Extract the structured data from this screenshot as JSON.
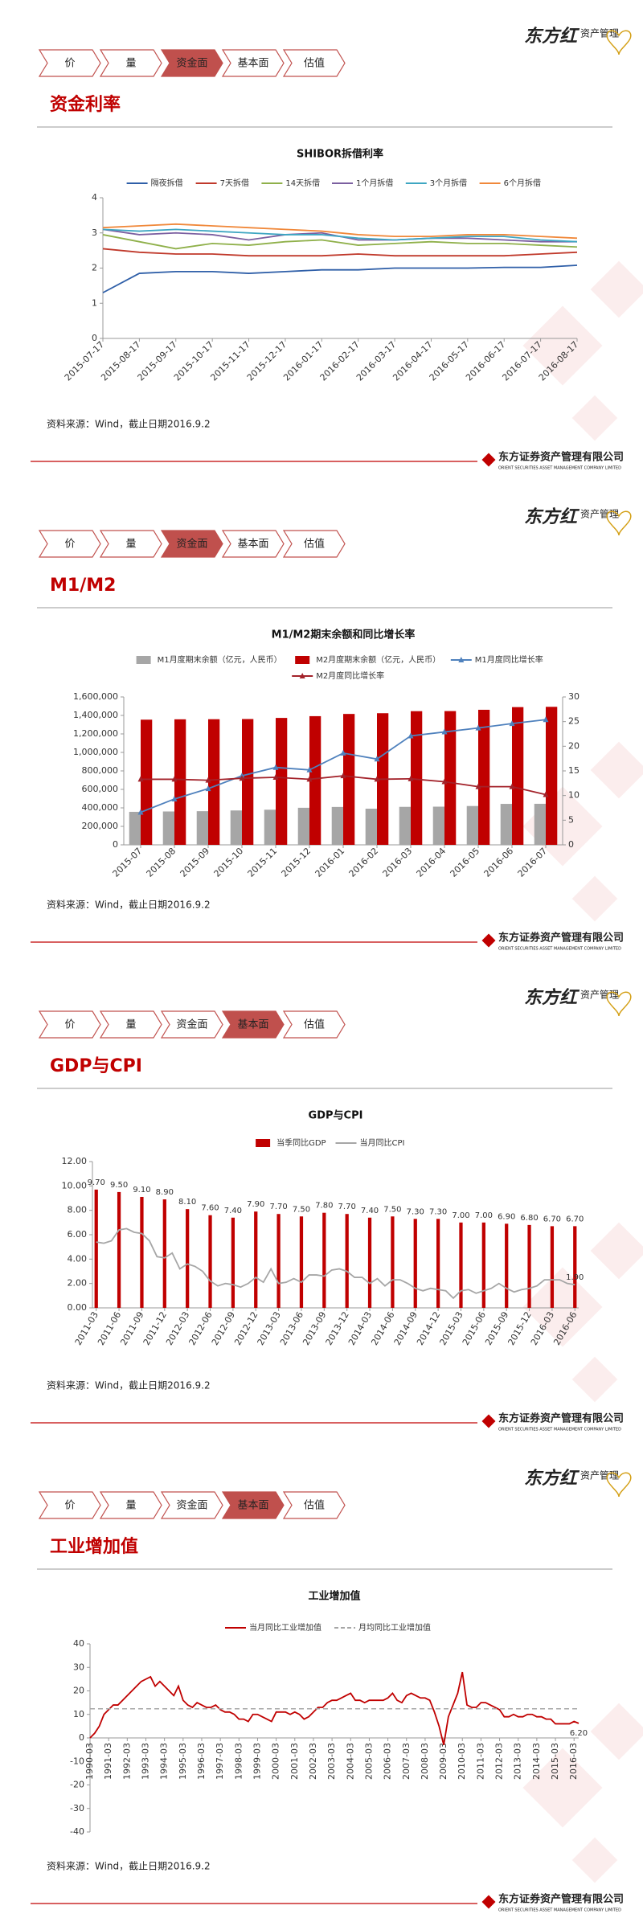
{
  "brand": {
    "logo": "东方红",
    "logo_sub": "资产管理",
    "company": "东方证券资产管理有限公司",
    "company_en": "ORIENT SECURITIES ASSET MANAGEMENT COMPANY LIMITED"
  },
  "nav": [
    "价",
    "量",
    "资金面",
    "基本面",
    "估值"
  ],
  "sections": [
    {
      "title": "资金利率",
      "active": 2,
      "source": "资料来源：Wind，截止日期2016.9.2"
    },
    {
      "title": "M1/M2",
      "active": 2,
      "source": "资料来源：Wind，截止日期2016.9.2"
    },
    {
      "title": "GDP与CPI",
      "active": 3,
      "source": "资料来源：Wind，截止日期2016.9.2"
    },
    {
      "title": "工业增加值",
      "active": 3,
      "source": "资料来源：Wind，截止日期2016.9.2"
    }
  ],
  "chart_data": [
    {
      "type": "line",
      "title": "SHIBOR拆借利率",
      "categories": [
        "2015-07-17",
        "2015-08-17",
        "2015-09-17",
        "2015-10-17",
        "2015-11-17",
        "2015-12-17",
        "2016-01-17",
        "2016-02-17",
        "2016-03-17",
        "2016-04-17",
        "2016-05-17",
        "2016-06-17",
        "2016-07-17",
        "2016-08-17"
      ],
      "ylim": [
        0,
        4
      ],
      "yticks": [
        0,
        1,
        2,
        3,
        4
      ],
      "grid": false,
      "series": [
        {
          "name": "隔夜拆借",
          "type": "line",
          "color": "#2f5fa8",
          "values": [
            1.3,
            1.85,
            1.9,
            1.9,
            1.85,
            1.9,
            1.95,
            1.95,
            2.0,
            2.0,
            2.0,
            2.02,
            2.02,
            2.08
          ]
        },
        {
          "name": "7天拆借",
          "type": "line",
          "color": "#c0392b",
          "values": [
            2.55,
            2.45,
            2.4,
            2.4,
            2.35,
            2.35,
            2.35,
            2.4,
            2.35,
            2.35,
            2.35,
            2.35,
            2.4,
            2.45
          ]
        },
        {
          "name": "14天拆借",
          "type": "line",
          "color": "#8fb04a",
          "values": [
            2.95,
            2.75,
            2.55,
            2.7,
            2.65,
            2.75,
            2.8,
            2.65,
            2.7,
            2.75,
            2.7,
            2.7,
            2.65,
            2.6
          ]
        },
        {
          "name": "1个月拆借",
          "type": "line",
          "color": "#7b5fa0",
          "values": [
            3.1,
            2.95,
            3.0,
            2.95,
            2.8,
            2.95,
            3.0,
            2.8,
            2.8,
            2.85,
            2.85,
            2.8,
            2.75,
            2.75
          ]
        },
        {
          "name": "3个月拆借",
          "type": "line",
          "color": "#3ea6c2",
          "values": [
            3.1,
            3.05,
            3.1,
            3.05,
            3.0,
            2.95,
            2.95,
            2.85,
            2.8,
            2.85,
            2.9,
            2.9,
            2.8,
            2.75
          ]
        },
        {
          "name": "6个月拆借",
          "type": "line",
          "color": "#f0883a",
          "values": [
            3.15,
            3.2,
            3.25,
            3.2,
            3.15,
            3.1,
            3.05,
            2.95,
            2.9,
            2.9,
            2.95,
            2.95,
            2.9,
            2.85
          ]
        }
      ]
    },
    {
      "type": "bar",
      "title": "M1/M2期末余额和同比增长率",
      "categories": [
        "2015-07",
        "2015-08",
        "2015-09",
        "2015-10",
        "2015-11",
        "2015-12",
        "2016-01",
        "2016-02",
        "2016-03",
        "2016-04",
        "2016-05",
        "2016-06",
        "2016-07"
      ],
      "ylim": [
        0,
        1600000
      ],
      "yticks": [
        0,
        {
          "value": 200000,
          "label": "200,000"
        },
        {
          "value": 400000,
          "label": "400,000"
        },
        {
          "value": 600000,
          "label": "600,000"
        },
        {
          "value": 800000,
          "label": "800,000"
        },
        {
          "value": 1000000,
          "label": "1,000,000"
        },
        {
          "value": 1200000,
          "label": "1,200,000"
        },
        {
          "value": 1400000,
          "label": "1,400,000"
        },
        {
          "value": 1600000,
          "label": "1,600,000"
        }
      ],
      "y2lim": [
        0,
        30
      ],
      "y2ticks": [
        0,
        5,
        10,
        15,
        20,
        25,
        30
      ],
      "grid": false,
      "series": [
        {
          "name": "M1月度期末余额（亿元，人民币）",
          "type": "bar",
          "color": "#a6a6a6",
          "values": [
            357000,
            361000,
            364000,
            372000,
            380000,
            401000,
            410000,
            391000,
            411000,
            413000,
            420000,
            443000,
            444000
          ]
        },
        {
          "name": "M2月度期末余额（亿元，人民币）",
          "type": "bar",
          "color": "#c00000",
          "values": [
            1354000,
            1358000,
            1359000,
            1361000,
            1373000,
            1392000,
            1416000,
            1424000,
            1446000,
            1447000,
            1461000,
            1490000,
            1493000
          ]
        },
        {
          "name": "M1月度同比增长率",
          "type": "line",
          "axis": "y2",
          "marker": "triangle",
          "color": "#4f81bd",
          "values": [
            6.6,
            9.3,
            11.4,
            14.0,
            15.7,
            15.2,
            18.6,
            17.4,
            22.1,
            22.9,
            23.7,
            24.6,
            25.4
          ]
        },
        {
          "name": "M2月度同比增长率",
          "type": "line",
          "axis": "y2",
          "marker": "triangle",
          "color": "#a3222a",
          "values": [
            13.3,
            13.3,
            13.1,
            13.5,
            13.7,
            13.3,
            14.0,
            13.3,
            13.4,
            12.8,
            11.8,
            11.8,
            10.2
          ]
        }
      ]
    },
    {
      "type": "bar",
      "title": "GDP与CPI",
      "categories": [
        "2011-03",
        null,
        null,
        "2011-06",
        null,
        null,
        "2011-09",
        null,
        null,
        "2011-12",
        null,
        null,
        "2012-03",
        null,
        null,
        "2012-06",
        null,
        null,
        "2012-09",
        null,
        null,
        "2012-12",
        null,
        null,
        "2013-03",
        null,
        null,
        "2013-06",
        null,
        null,
        "2013-09",
        null,
        null,
        "2013-12",
        null,
        null,
        "2014-03",
        null,
        null,
        "2014-06",
        null,
        null,
        "2014-09",
        null,
        null,
        "2014-12",
        null,
        null,
        "2015-03",
        null,
        null,
        "2015-06",
        null,
        null,
        "2015-09",
        null,
        null,
        "2015-12",
        null,
        null,
        "2016-03",
        null,
        null,
        "2016-06"
      ],
      "ylim": [
        0,
        12
      ],
      "yticks": [
        {
          "value": 0,
          "label": "0.00"
        },
        {
          "value": 2,
          "label": "2.00"
        },
        {
          "value": 4,
          "label": "4.00"
        },
        {
          "value": 6,
          "label": "6.00"
        },
        {
          "value": 8,
          "label": "8.00"
        },
        {
          "value": 10,
          "label": "10.00"
        },
        {
          "value": 12,
          "label": "12.00"
        }
      ],
      "grid": false,
      "series": [
        {
          "name": "当季同比GDP",
          "type": "bar",
          "color": "#c00000",
          "values": [
            9.7,
            null,
            null,
            9.5,
            null,
            null,
            9.1,
            null,
            null,
            8.9,
            null,
            null,
            8.1,
            null,
            null,
            7.6,
            null,
            null,
            7.4,
            null,
            null,
            7.9,
            null,
            null,
            7.7,
            null,
            null,
            7.5,
            null,
            null,
            7.8,
            null,
            null,
            7.7,
            null,
            null,
            7.4,
            null,
            null,
            7.5,
            null,
            null,
            7.3,
            null,
            null,
            7.3,
            null,
            null,
            7.0,
            null,
            null,
            7.0,
            null,
            null,
            6.9,
            null,
            null,
            6.8,
            null,
            null,
            6.7,
            null,
            null,
            6.7
          ],
          "value_labels": [
            "9.70",
            null,
            null,
            "9.50",
            null,
            null,
            "9.10",
            null,
            null,
            "8.90",
            null,
            null,
            "8.10",
            null,
            null,
            "7.60",
            null,
            null,
            "7.40",
            null,
            null,
            "7.90",
            null,
            null,
            "7.70",
            null,
            null,
            "7.50",
            null,
            null,
            "7.80",
            null,
            null,
            "7.70",
            null,
            null,
            "7.40",
            null,
            null,
            "7.50",
            null,
            null,
            "7.30",
            null,
            null,
            "7.30",
            null,
            null,
            "7.00",
            null,
            null,
            "7.00",
            null,
            null,
            "6.90",
            null,
            null,
            "6.80",
            null,
            null,
            "6.70",
            null,
            null,
            "6.70"
          ]
        },
        {
          "name": "当月同比CPI",
          "type": "line",
          "color": "#a6a6a6",
          "values": [
            5.4,
            5.3,
            5.5,
            6.4,
            6.5,
            6.2,
            6.1,
            5.5,
            4.2,
            4.1,
            4.5,
            3.2,
            3.6,
            3.4,
            3.0,
            2.2,
            1.8,
            2.0,
            1.9,
            1.7,
            2.0,
            2.5,
            2.1,
            3.2,
            2.0,
            2.1,
            2.4,
            2.1,
            2.7,
            2.7,
            2.6,
            3.1,
            3.2,
            3.0,
            2.5,
            2.5,
            2.0,
            2.4,
            1.8,
            2.3,
            2.3,
            2.0,
            1.6,
            1.4,
            1.6,
            1.5,
            1.4,
            0.8,
            1.4,
            1.5,
            1.2,
            1.4,
            1.6,
            2.0,
            1.6,
            1.3,
            1.5,
            1.6,
            1.8,
            2.3,
            2.3,
            2.3,
            2.0,
            1.9
          ],
          "value_labels": [
            null,
            null,
            null,
            null,
            null,
            null,
            null,
            null,
            null,
            null,
            null,
            null,
            null,
            null,
            null,
            null,
            null,
            null,
            null,
            null,
            null,
            null,
            null,
            null,
            null,
            null,
            null,
            null,
            null,
            null,
            null,
            null,
            null,
            null,
            null,
            null,
            null,
            null,
            null,
            null,
            null,
            null,
            null,
            null,
            null,
            null,
            null,
            null,
            null,
            null,
            null,
            null,
            null,
            null,
            null,
            null,
            null,
            null,
            null,
            null,
            null,
            null,
            null,
            "1.90"
          ]
        }
      ]
    },
    {
      "type": "line",
      "title": "工业增加值",
      "categories": [
        "1990-03",
        null,
        null,
        null,
        "1991-03",
        null,
        null,
        null,
        "1992-03",
        null,
        null,
        null,
        "1993-03",
        null,
        null,
        null,
        "1994-03",
        null,
        null,
        null,
        "1995-03",
        null,
        null,
        null,
        "1996-03",
        null,
        null,
        null,
        "1997-03",
        null,
        null,
        null,
        "1998-03",
        null,
        null,
        null,
        "1999-03",
        null,
        null,
        null,
        "2000-03",
        null,
        null,
        null,
        "2001-03",
        null,
        null,
        null,
        "2002-03",
        null,
        null,
        null,
        "2003-03",
        null,
        null,
        null,
        "2004-03",
        null,
        null,
        null,
        "2005-03",
        null,
        null,
        null,
        "2006-03",
        null,
        null,
        null,
        "2007-03",
        null,
        null,
        null,
        "2008-03",
        null,
        null,
        null,
        "2009-03",
        null,
        null,
        null,
        "2010-03",
        null,
        null,
        null,
        "2011-03",
        null,
        null,
        null,
        "2012-03",
        null,
        null,
        null,
        "2013-03",
        null,
        null,
        null,
        "2014-03",
        null,
        null,
        null,
        "2015-03",
        null,
        null,
        null,
        "2016-03",
        null
      ],
      "ylim": [
        -40,
        40
      ],
      "yticks": [
        -40,
        -30,
        -20,
        -10,
        0,
        10,
        20,
        30,
        40
      ],
      "grid": false,
      "series": [
        {
          "name": "当月同比工业增加值",
          "type": "line",
          "color": "#c00000",
          "values": [
            0,
            2,
            5,
            10,
            12,
            14,
            14,
            16,
            18,
            20,
            22,
            24,
            25,
            26,
            22,
            24,
            22,
            20,
            18,
            22,
            16,
            14,
            13,
            15,
            14,
            13,
            13,
            14,
            12,
            11,
            11,
            10,
            8,
            8,
            7,
            10,
            10,
            9,
            8,
            7,
            11,
            11,
            11,
            10,
            11,
            10,
            8,
            9,
            11,
            13,
            13,
            15,
            16,
            16,
            17,
            18,
            19,
            16,
            16,
            15,
            16,
            16,
            16,
            16,
            17,
            19,
            16,
            15,
            18,
            19,
            18,
            17,
            17,
            16,
            11,
            5,
            -3,
            9,
            14,
            19,
            28,
            14,
            13,
            13,
            15,
            15,
            14,
            13,
            12,
            9,
            9,
            10,
            9,
            9,
            10,
            10,
            9,
            9,
            8,
            8,
            6,
            6,
            6,
            6,
            7,
            6.2
          ],
          "value_labels": [
            null,
            null,
            null,
            null,
            null,
            null,
            null,
            null,
            null,
            null,
            null,
            null,
            null,
            null,
            null,
            null,
            null,
            null,
            null,
            null,
            null,
            null,
            null,
            null,
            null,
            null,
            null,
            null,
            null,
            null,
            null,
            null,
            null,
            null,
            null,
            null,
            null,
            null,
            null,
            null,
            null,
            null,
            null,
            null,
            null,
            null,
            null,
            null,
            null,
            null,
            null,
            null,
            null,
            null,
            null,
            null,
            null,
            null,
            null,
            null,
            null,
            null,
            null,
            null,
            null,
            null,
            null,
            null,
            null,
            null,
            null,
            null,
            null,
            null,
            null,
            null,
            null,
            null,
            null,
            null,
            null,
            null,
            null,
            null,
            null,
            null,
            null,
            null,
            null,
            null,
            null,
            null,
            null,
            null,
            null,
            null,
            null,
            null,
            null,
            null,
            null,
            null,
            null,
            null,
            null,
            "6.20"
          ]
        },
        {
          "name": "月均同比工业增加值",
          "type": "line",
          "dash": true,
          "color": "#a6a6a6",
          "value": 12.4
        }
      ]
    }
  ]
}
